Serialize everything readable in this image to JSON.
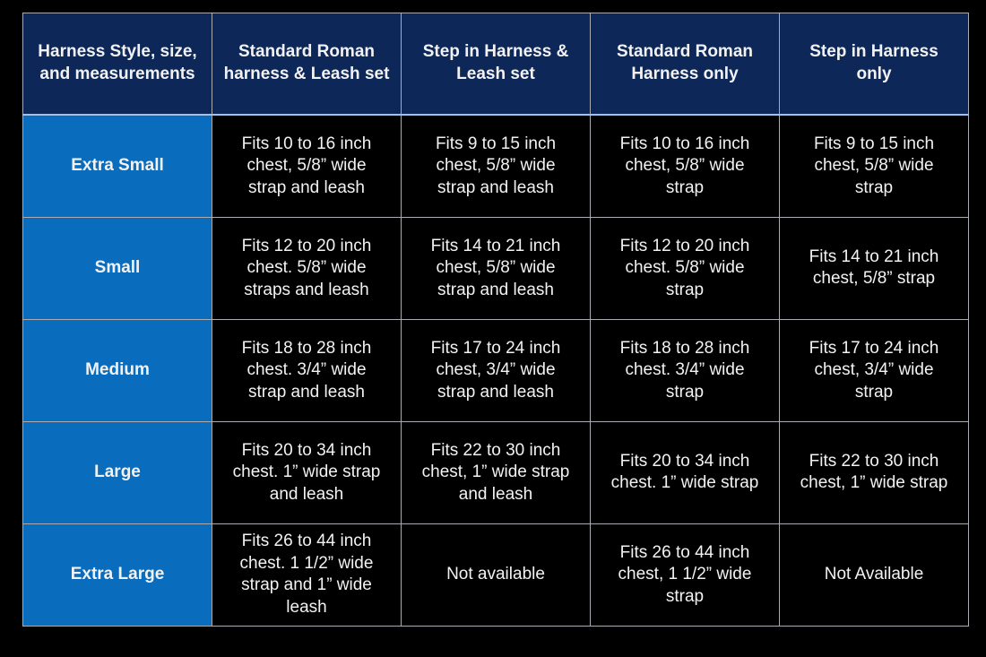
{
  "table": {
    "headers": [
      "Harness Style, size,\nand measurements",
      "Standard Roman\nharness & Leash set",
      "Step in Harness &\nLeash set",
      "Standard Roman\nHarness only",
      "Step in Harness\nonly"
    ],
    "rows": [
      [
        "Extra Small",
        "Fits 10 to 16 inch\nchest, 5/8” wide\nstrap and leash",
        "Fits 9 to 15 inch\nchest, 5/8” wide\nstrap and leash",
        "Fits 10 to 16 inch\nchest, 5/8” wide\nstrap",
        "Fits 9 to 15 inch\nchest, 5/8” wide\nstrap"
      ],
      [
        "Small",
        "Fits 12 to 20 inch\nchest. 5/8” wide\nstraps and leash",
        "Fits 14 to 21 inch\nchest, 5/8” wide\nstrap and leash",
        "Fits 12 to 20 inch\nchest. 5/8” wide\nstrap",
        "Fits 14 to 21 inch\nchest, 5/8” strap"
      ],
      [
        "Medium",
        "Fits 18 to 28 inch\nchest. 3/4” wide\nstrap and leash",
        "Fits 17 to 24 inch\nchest, 3/4” wide\nstrap and leash",
        "Fits 18 to 28 inch\nchest. 3/4” wide\nstrap",
        "Fits 17 to 24 inch\nchest, 3/4” wide\nstrap"
      ],
      [
        "Large",
        "Fits 20 to 34 inch\nchest. 1” wide strap\nand leash",
        "Fits 22 to 30 inch\nchest, 1” wide strap\nand leash",
        "Fits 20 to 34 inch\nchest. 1” wide strap",
        "Fits 22 to 30 inch\nchest, 1” wide strap"
      ],
      [
        "Extra Large",
        "Fits 26 to 44 inch\nchest. 1 1/2” wide\nstrap and 1” wide\nleash",
        "Not available",
        "Fits 26 to 44 inch\nchest, 1 1/2” wide\nstrap",
        "Not Available"
      ]
    ]
  },
  "colors": {
    "header_bg": "#0c2758",
    "size_column_bg": "#0a6cbc",
    "cell_bg": "#000000",
    "text": "#f2f2f2",
    "grid": "#a9acb3"
  }
}
